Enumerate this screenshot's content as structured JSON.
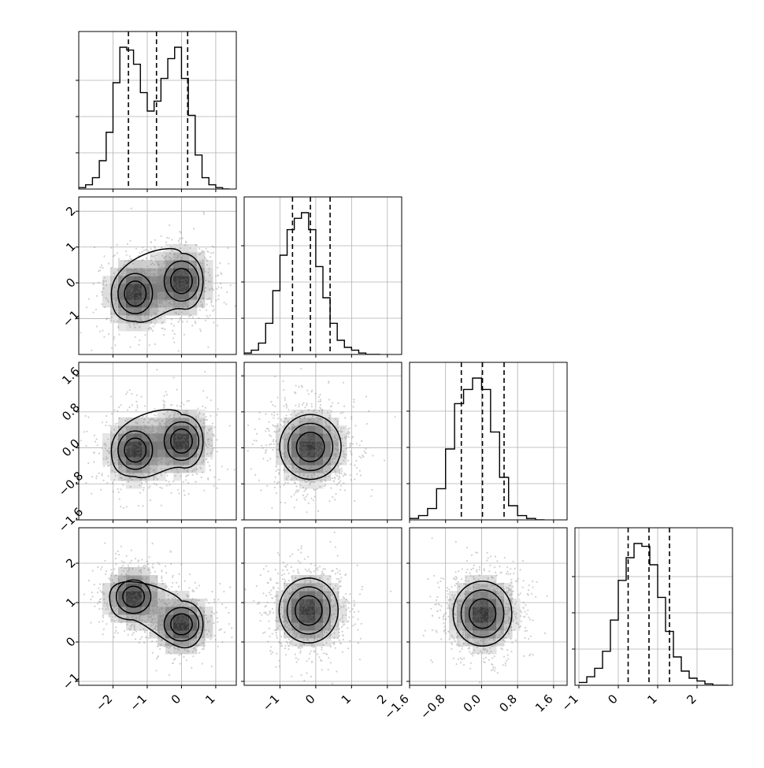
{
  "chart_data": {
    "type": "corner",
    "grid": true,
    "parameters": [
      {
        "range": [
          -3.0,
          1.6
        ],
        "ticks": [
          -2,
          -1,
          0,
          1
        ],
        "tick_labels": [
          "−2",
          "−1",
          "0",
          "1"
        ],
        "quantiles": [
          -1.55,
          -0.73,
          0.18
        ],
        "hist": {
          "bins": [
            -3.0,
            -2.8,
            -2.6,
            -2.4,
            -2.2,
            -2.0,
            -1.8,
            -1.6,
            -1.4,
            -1.2,
            -1.0,
            -0.8,
            -0.6,
            -0.4,
            -0.2,
            0.0,
            0.2,
            0.4,
            0.6,
            0.8,
            1.0,
            1.2,
            1.4
          ],
          "counts": [
            0.01,
            0.03,
            0.08,
            0.2,
            0.4,
            0.75,
            1.0,
            0.98,
            0.88,
            0.68,
            0.55,
            0.62,
            0.78,
            0.92,
            1.0,
            0.78,
            0.52,
            0.24,
            0.08,
            0.03,
            0.01,
            0.0
          ]
        }
      },
      {
        "range": [
          -2.0,
          2.4
        ],
        "ticks": [
          -1,
          0,
          1,
          2
        ],
        "tick_labels": [
          "−1",
          "0",
          "1",
          "2"
        ],
        "quantiles": [
          -0.65,
          -0.15,
          0.4
        ],
        "hist": {
          "bins": [
            -2.0,
            -1.8,
            -1.6,
            -1.4,
            -1.2,
            -1.0,
            -0.8,
            -0.6,
            -0.4,
            -0.2,
            0.0,
            0.2,
            0.4,
            0.6,
            0.8,
            1.0,
            1.2,
            1.4,
            1.6,
            1.8
          ],
          "counts": [
            0.01,
            0.03,
            0.08,
            0.22,
            0.45,
            0.7,
            0.88,
            0.96,
            1.0,
            0.88,
            0.62,
            0.4,
            0.22,
            0.1,
            0.05,
            0.03,
            0.01,
            0.0,
            0.0
          ]
        }
      },
      {
        "range": [
          -1.6,
          1.9
        ],
        "ticks": [
          -1.6,
          -0.8,
          0.0,
          0.8,
          1.6
        ],
        "tick_labels": [
          "−1.6",
          "−0.8",
          "0.0",
          "0.8",
          "1.6"
        ],
        "quantiles": [
          -0.45,
          0.02,
          0.5
        ],
        "hist": {
          "bins": [
            -1.6,
            -1.4,
            -1.2,
            -1.0,
            -0.8,
            -0.6,
            -0.4,
            -0.2,
            0.0,
            0.2,
            0.4,
            0.6,
            0.8,
            1.0,
            1.2,
            1.4
          ],
          "counts": [
            0.01,
            0.03,
            0.08,
            0.22,
            0.5,
            0.82,
            0.92,
            1.0,
            0.92,
            0.62,
            0.3,
            0.1,
            0.03,
            0.01,
            0.0
          ]
        }
      },
      {
        "range": [
          -1.1,
          2.9
        ],
        "ticks": [
          -1,
          0,
          1,
          2
        ],
        "tick_labels": [
          "−1",
          "0",
          "1",
          "2"
        ],
        "quantiles": [
          0.25,
          0.78,
          1.3
        ],
        "hist": {
          "bins": [
            -1.0,
            -0.8,
            -0.6,
            -0.4,
            -0.2,
            0.0,
            0.2,
            0.4,
            0.6,
            0.8,
            1.0,
            1.2,
            1.4,
            1.6,
            1.8,
            2.0,
            2.2,
            2.4,
            2.6,
            2.8
          ],
          "counts": [
            0.02,
            0.06,
            0.12,
            0.24,
            0.46,
            0.74,
            0.9,
            1.0,
            0.98,
            0.85,
            0.62,
            0.38,
            0.2,
            0.1,
            0.05,
            0.03,
            0.01,
            0.0,
            0.0
          ]
        }
      }
    ],
    "y_ranges": [
      null,
      [
        -2.0,
        2.4
      ],
      [
        -1.6,
        1.9
      ],
      [
        -1.1,
        2.9
      ]
    ],
    "y_ticks": [
      null,
      [
        -1,
        0,
        1,
        2
      ],
      [
        -1.6,
        -0.8,
        0.0,
        0.8,
        1.6
      ],
      [
        -1,
        0,
        1,
        2
      ]
    ],
    "y_tick_labels": [
      null,
      [
        "−1",
        "0",
        "1",
        "2"
      ],
      [
        "−1.6",
        "−0.8",
        "0.0",
        "0.8",
        "1.6"
      ],
      [
        "−1",
        "0",
        "1",
        "2"
      ]
    ],
    "density_modes": {
      "p0": [
        {
          "mx": -1.35,
          "mix": 0.5
        },
        {
          "mx": 0.0,
          "mix": 0.5
        }
      ],
      "correlations": {
        "1-0": {
          "modes": [
            {
              "x": -1.35,
              "y": -0.3
            },
            {
              "x": 0.0,
              "y": 0.05
            }
          ],
          "sx": 0.45,
          "sy": 0.5
        },
        "2-0": {
          "modes": [
            {
              "x": -1.35,
              "y": -0.05
            },
            {
              "x": 0.0,
              "y": 0.15
            }
          ],
          "sx": 0.45,
          "sy": 0.38
        },
        "3-0": {
          "modes": [
            {
              "x": -1.4,
              "y": 1.15
            },
            {
              "x": 0.0,
              "y": 0.45
            }
          ],
          "sx": 0.45,
          "sy": 0.38
        },
        "2-1": {
          "modes": [
            {
              "x": -0.15,
              "y": 0.02
            }
          ],
          "sx": 0.5,
          "sy": 0.42
        },
        "3-1": {
          "modes": [
            {
              "x": -0.2,
              "y": 0.8
            }
          ],
          "sx": 0.48,
          "sy": 0.48
        },
        "3-2": {
          "modes": [
            {
              "x": 0.02,
              "y": 0.72
            }
          ],
          "sx": 0.38,
          "sy": 0.48
        }
      }
    }
  }
}
